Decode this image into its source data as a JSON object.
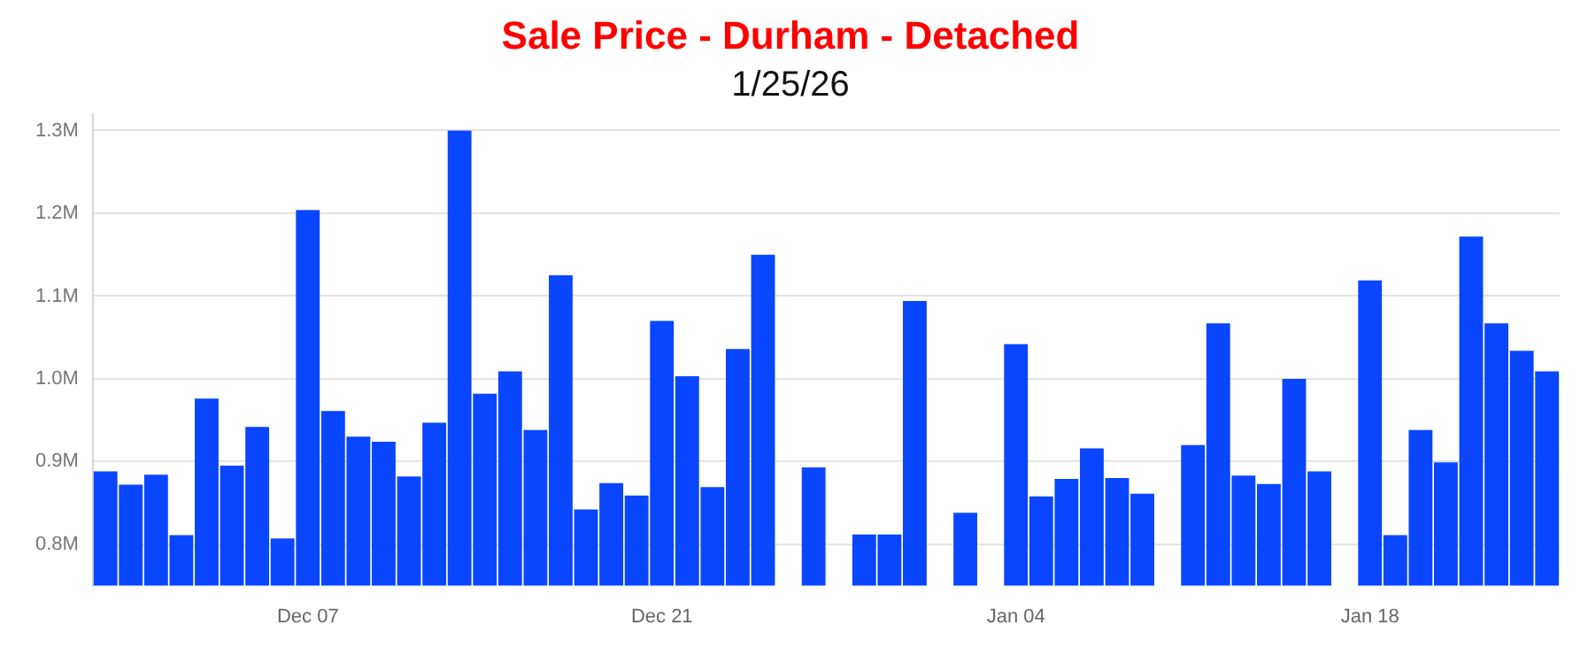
{
  "chart_data": {
    "type": "bar",
    "title": "Sale Price - Durham - Detached",
    "subtitle": "1/25/26",
    "categories": [
      null,
      null,
      null,
      null,
      null,
      null,
      null,
      null,
      "Dec 07",
      null,
      null,
      null,
      null,
      null,
      null,
      null,
      null,
      null,
      null,
      null,
      null,
      null,
      "Dec 21",
      null,
      null,
      null,
      null,
      null,
      null,
      null,
      null,
      null,
      null,
      null,
      null,
      null,
      "Jan 04",
      null,
      null,
      null,
      null,
      null,
      null,
      null,
      null,
      null,
      null,
      null,
      null,
      null,
      "Jan 18",
      null,
      null,
      null,
      null,
      null,
      null,
      null
    ],
    "values": [
      888000,
      872000,
      884000,
      811000,
      976000,
      895000,
      942000,
      807000,
      1204000,
      961000,
      930000,
      924000,
      882000,
      947000,
      1300000,
      982000,
      1009000,
      938000,
      1125000,
      842000,
      874000,
      859000,
      1070000,
      1003000,
      869000,
      1036000,
      1150000,
      null,
      893000,
      null,
      812000,
      812000,
      1094000,
      null,
      838000,
      null,
      1042000,
      858000,
      879000,
      916000,
      880000,
      861000,
      null,
      920000,
      1067000,
      883000,
      873000,
      1000000,
      888000,
      null,
      1119000,
      811000,
      938000,
      899000,
      1172000,
      1067000,
      1034000,
      1009000
    ],
    "color": "#0a46ff",
    "ylim": [
      750000,
      1320000
    ],
    "yticks": [
      {
        "value": 800000,
        "label": "0.8M"
      },
      {
        "value": 900000,
        "label": "0.9M"
      },
      {
        "value": 1000000,
        "label": "1.0M"
      },
      {
        "value": 1100000,
        "label": "1.1M"
      },
      {
        "value": 1200000,
        "label": "1.2M"
      },
      {
        "value": 1300000,
        "label": "1.3M"
      }
    ],
    "grid": "y"
  }
}
